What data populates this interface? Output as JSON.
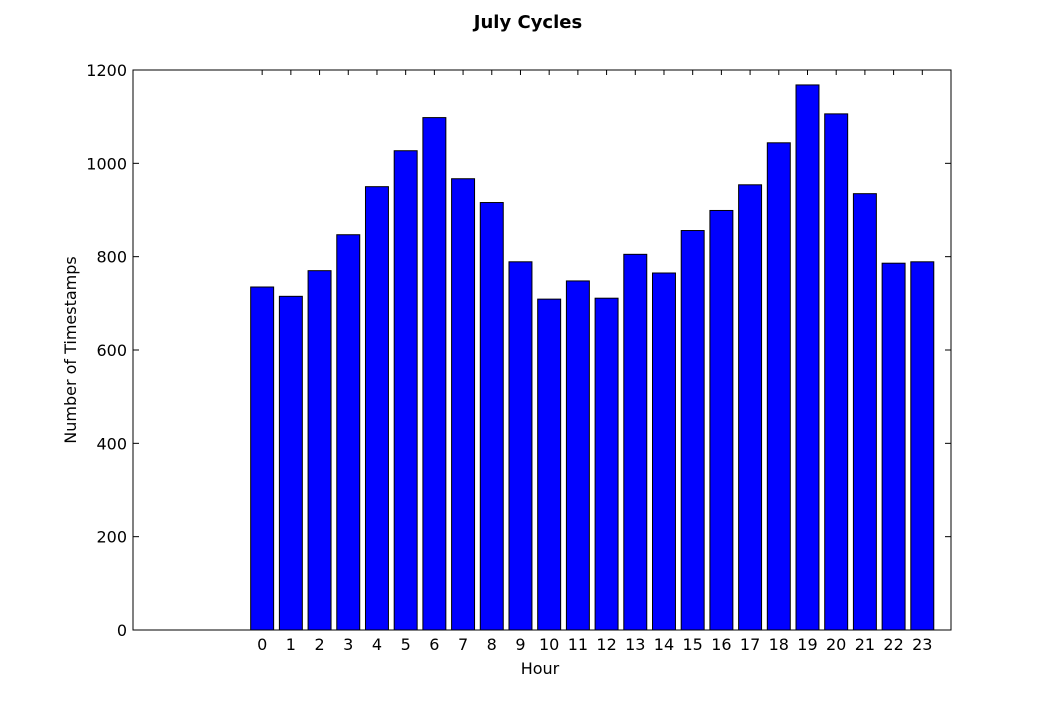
{
  "chart_data": {
    "type": "bar",
    "title": "July Cycles",
    "xlabel": "Hour",
    "ylabel": "Number of Timestamps",
    "categories": [
      "0",
      "1",
      "2",
      "3",
      "4",
      "5",
      "6",
      "7",
      "8",
      "9",
      "10",
      "11",
      "12",
      "13",
      "14",
      "15",
      "16",
      "17",
      "18",
      "19",
      "20",
      "21",
      "22",
      "23"
    ],
    "values": [
      735,
      715,
      770,
      847,
      950,
      1027,
      1098,
      967,
      916,
      789,
      709,
      748,
      711,
      805,
      765,
      856,
      899,
      954,
      1044,
      1168,
      1106,
      935,
      786,
      789
    ],
    "xlim": [
      -4.5,
      24
    ],
    "ylim": [
      0,
      1200
    ],
    "yticks": [
      0,
      200,
      400,
      600,
      800,
      1000,
      1200
    ],
    "bar_color": "#0000ff",
    "edge_color": "#000000",
    "grid": false,
    "legend": "none"
  }
}
